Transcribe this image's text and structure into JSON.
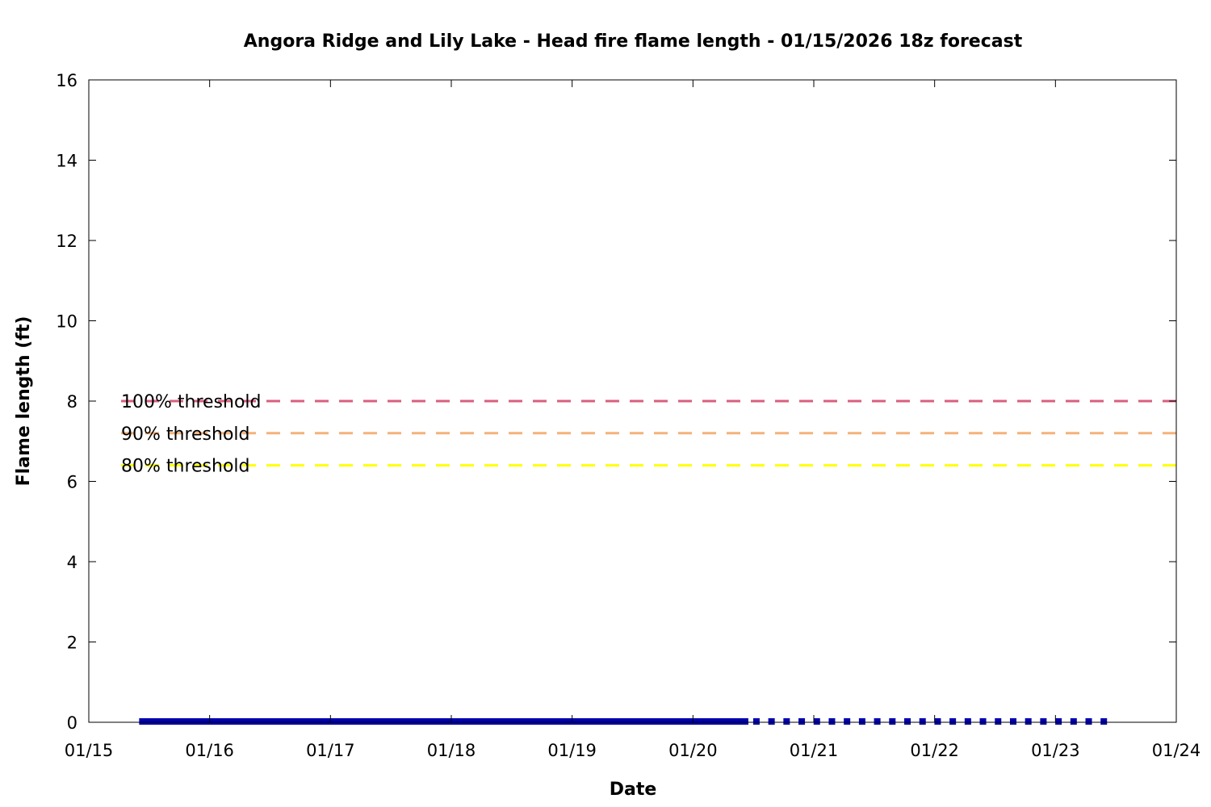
{
  "chart_data": {
    "type": "line",
    "title": "Angora Ridge and Lily Lake - Head fire flame length - 01/15/2026 18z forecast",
    "xlabel": "Date",
    "ylabel": "Flame length (ft)",
    "x_ticks": [
      "01/15",
      "01/16",
      "01/17",
      "01/18",
      "01/19",
      "01/20",
      "01/21",
      "01/22",
      "01/23",
      "01/24"
    ],
    "xlim": [
      "01/15",
      "01/24"
    ],
    "ylim": [
      0,
      16
    ],
    "y_ticks": [
      "0",
      "2",
      "4",
      "6",
      "8",
      "10",
      "12",
      "14",
      "16"
    ],
    "grid": false,
    "thresholds": [
      {
        "label": "100% threshold",
        "value": 8.0,
        "color": "#d95f7f"
      },
      {
        "label": "90% threshold",
        "value": 7.2,
        "color": "#f4b27a"
      },
      {
        "label": "80% threshold",
        "value": 6.4,
        "color": "#ffff00"
      }
    ],
    "series": [
      {
        "style": "solid",
        "color": "#0000b0",
        "x_start": "01/15 10:00",
        "x_end": "01/20 11:00",
        "values": [
          0
        ]
      },
      {
        "style": "dotted",
        "color": "#0000b0",
        "x_start": "01/20 11:00",
        "x_end": "01/23 11:00",
        "values": [
          0
        ]
      }
    ]
  }
}
